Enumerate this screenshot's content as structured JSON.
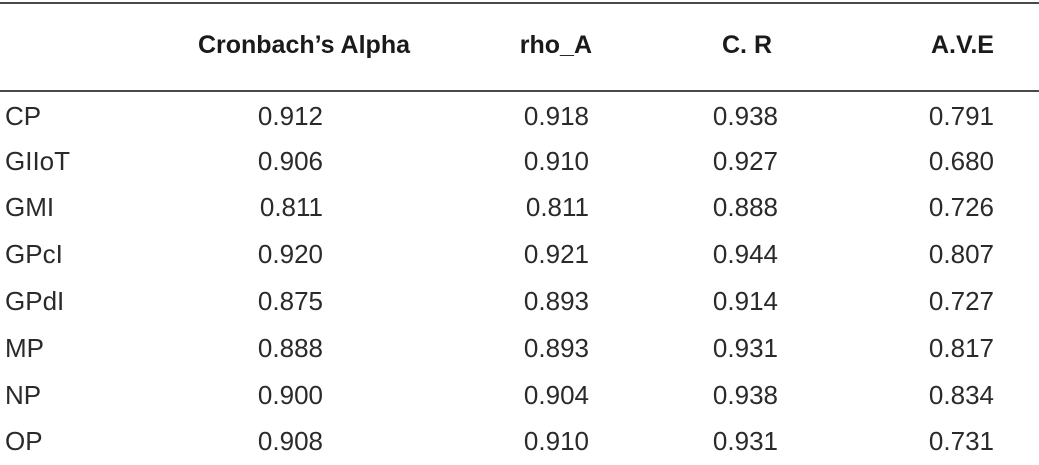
{
  "table": {
    "headers": [
      "",
      "Cronbach’s Alpha",
      "rho_A",
      "C. R",
      "A.V.E"
    ],
    "rows": [
      {
        "label": "CP",
        "values": [
          "0.912",
          "0.918",
          "0.938",
          "0.791"
        ]
      },
      {
        "label": "GIIoT",
        "values": [
          "0.906",
          "0.910",
          "0.927",
          "0.680"
        ]
      },
      {
        "label": "GMI",
        "values": [
          "0.811",
          "0.811",
          "0.888",
          "0.726"
        ]
      },
      {
        "label": "GPcI",
        "values": [
          "0.920",
          "0.921",
          "0.944",
          "0.807"
        ]
      },
      {
        "label": "GPdI",
        "values": [
          "0.875",
          "0.893",
          "0.914",
          "0.727"
        ]
      },
      {
        "label": "MP",
        "values": [
          "0.888",
          "0.893",
          "0.931",
          "0.817"
        ]
      },
      {
        "label": "NP",
        "values": [
          "0.900",
          "0.904",
          "0.938",
          "0.834"
        ]
      },
      {
        "label": "OP",
        "values": [
          "0.908",
          "0.910",
          "0.931",
          "0.731"
        ]
      }
    ]
  }
}
